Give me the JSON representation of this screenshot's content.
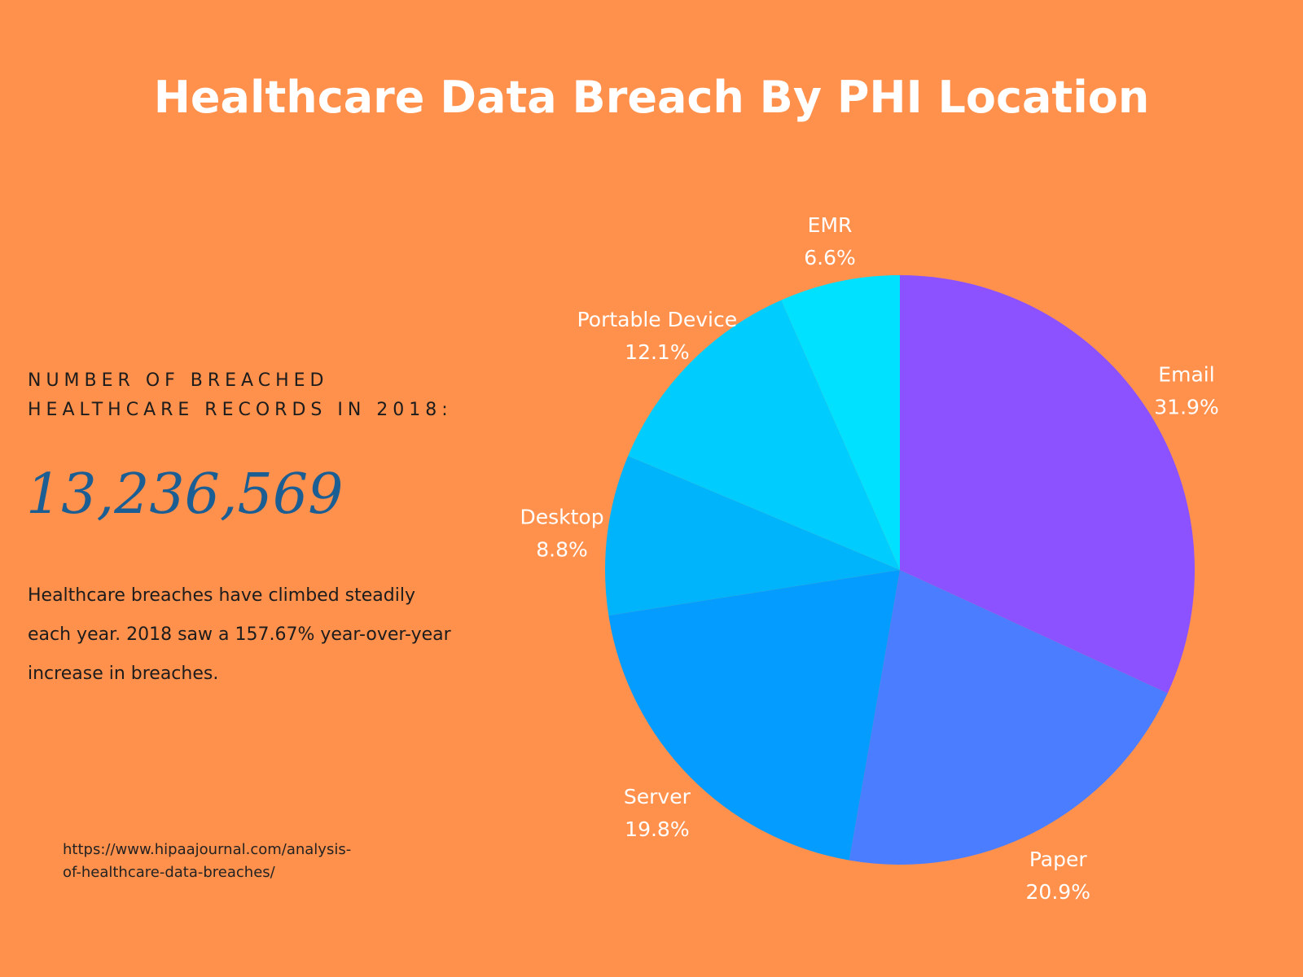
{
  "header": {
    "title": "Healthcare Data Breach By PHI Location"
  },
  "stats": {
    "records_label": "NUMBER OF BREACHED HEALTHCARE RECORDS IN 2018:",
    "records_value": "13,236,569",
    "description": "Healthcare breaches have climbed steadily each year. 2018 saw a 157.67% year-over-year increase in breaches."
  },
  "source": {
    "url": "https://www.hipaajournal.com/analysis-of-healthcare-data-breaches/"
  },
  "colors": {
    "background": "#FF914D",
    "title": "#FFFFFF",
    "number": "#1B5E93"
  },
  "chart_data": {
    "type": "pie",
    "title": "Healthcare Data Breach By PHI Location",
    "slices": [
      {
        "label": "Email",
        "value": 31.9,
        "value_label": "31.9%",
        "color": "#8C52FF"
      },
      {
        "label": "Paper",
        "value": 20.9,
        "value_label": "20.9%",
        "color": "#4A7DFF"
      },
      {
        "label": "Server",
        "value": 19.8,
        "value_label": "19.8%",
        "color": "#049CFE"
      },
      {
        "label": "Desktop",
        "value": 8.8,
        "value_label": "8.8%",
        "color": "#00B4FC"
      },
      {
        "label": "Portable Device",
        "value": 12.1,
        "value_label": "12.1%",
        "color": "#00CDFE"
      },
      {
        "label": "EMR",
        "value": 6.6,
        "value_label": "6.6%",
        "color": "#00E0FF"
      }
    ],
    "start": "12 o'clock",
    "direction": "clockwise",
    "legend": "none"
  }
}
